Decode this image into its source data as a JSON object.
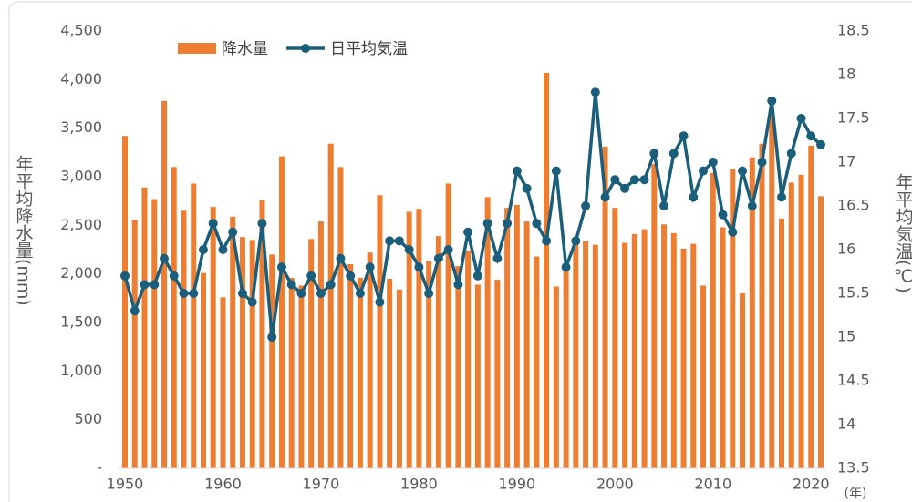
{
  "chart_data": {
    "type": "bar_line",
    "x": [
      1950,
      1951,
      1952,
      1953,
      1954,
      1955,
      1956,
      1957,
      1958,
      1959,
      1960,
      1961,
      1962,
      1963,
      1964,
      1965,
      1966,
      1967,
      1968,
      1969,
      1970,
      1971,
      1972,
      1973,
      1974,
      1975,
      1976,
      1977,
      1978,
      1979,
      1980,
      1981,
      1982,
      1983,
      1984,
      1985,
      1986,
      1987,
      1988,
      1989,
      1990,
      1991,
      1992,
      1993,
      1994,
      1995,
      1996,
      1997,
      1998,
      1999,
      2000,
      2001,
      2002,
      2003,
      2004,
      2005,
      2006,
      2007,
      2008,
      2009,
      2010,
      2011,
      2012,
      2013,
      2014,
      2015,
      2016,
      2017,
      2018,
      2019,
      2020,
      2021
    ],
    "xlim": [
      1950,
      2021
    ],
    "xticks": [
      1950,
      1960,
      1970,
      1980,
      1990,
      2000,
      2010,
      2020
    ],
    "x_unit": "(年)",
    "ylabel": "年平均降水量(mm)",
    "y2label": "年平均気温(℃)",
    "ylim": [
      0,
      4500
    ],
    "yticks": [
      {
        "value": 0,
        "label": "-"
      },
      500,
      {
        "value": 1000,
        "label": "1,000"
      },
      {
        "value": 1500,
        "label": "1,500"
      },
      {
        "value": 2000,
        "label": "2,000"
      },
      {
        "value": 2500,
        "label": "2,500"
      },
      {
        "value": 3000,
        "label": "3,000"
      },
      {
        "value": 3500,
        "label": "3,500"
      },
      {
        "value": 4000,
        "label": "4,000"
      },
      {
        "value": 4500,
        "label": "4,500"
      }
    ],
    "y2lim": [
      13.5,
      18.5
    ],
    "y2ticks": [
      13.5,
      14,
      14.5,
      15,
      15.5,
      16,
      16.5,
      17,
      17.5,
      18,
      18.5
    ],
    "legend": "top-left",
    "series": [
      {
        "name": "降水量",
        "type": "bar",
        "color": "#ED7D31",
        "values": [
          3420,
          2550,
          2890,
          2770,
          3780,
          3100,
          2650,
          2930,
          2010,
          2690,
          1760,
          2590,
          2380,
          2350,
          2760,
          2200,
          3210,
          1960,
          1880,
          2360,
          2540,
          3340,
          3100,
          2100,
          1960,
          2220,
          2810,
          1950,
          1840,
          2640,
          2670,
          2130,
          2390,
          2930,
          2080,
          2240,
          1890,
          2790,
          1940,
          2680,
          2710,
          2540,
          2180,
          4070,
          1870,
          2100,
          2340,
          2340,
          2300,
          3310,
          2680,
          2320,
          2410,
          2460,
          3130,
          2510,
          2420,
          2260,
          2310,
          1880,
          3040,
          2480,
          3080,
          1800,
          3200,
          3340,
          3650,
          2570,
          2940,
          3020,
          3320,
          2800
        ]
      },
      {
        "name": "日平均気温",
        "type": "line",
        "axis": "y2",
        "color": "#1B5E7B",
        "values": [
          15.7,
          15.3,
          15.6,
          15.6,
          15.9,
          15.7,
          15.5,
          15.5,
          16.0,
          16.3,
          16.0,
          16.2,
          15.5,
          15.4,
          16.3,
          15.0,
          15.8,
          15.6,
          15.5,
          15.7,
          15.5,
          15.6,
          15.9,
          15.7,
          15.5,
          15.8,
          15.4,
          16.1,
          16.1,
          16.0,
          15.8,
          15.5,
          15.9,
          16.0,
          15.6,
          16.2,
          15.7,
          16.3,
          15.9,
          16.3,
          16.9,
          16.7,
          16.3,
          16.1,
          16.9,
          15.8,
          16.1,
          16.5,
          17.8,
          16.6,
          16.8,
          16.7,
          16.8,
          16.8,
          17.1,
          16.5,
          17.1,
          17.3,
          16.6,
          16.9,
          17.0,
          16.4,
          16.2,
          16.9,
          16.5,
          17.0,
          17.7,
          16.6,
          17.1,
          17.5,
          17.3,
          17.2
        ]
      }
    ]
  }
}
